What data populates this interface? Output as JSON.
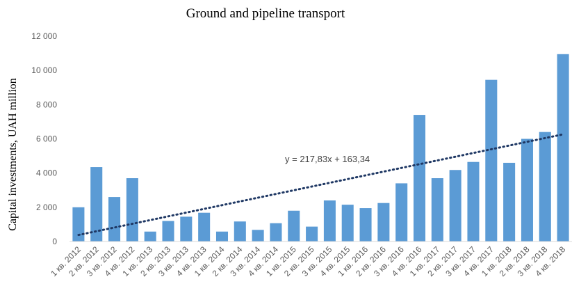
{
  "chart_data": {
    "type": "bar",
    "title": "Ground and pipeline transport",
    "xlabel": "",
    "ylabel": "Capital investments, UAH million",
    "ylim": [
      0,
      12000
    ],
    "yticks": [
      0,
      2000,
      4000,
      6000,
      8000,
      10000,
      12000
    ],
    "ytick_labels": [
      "0",
      "2 000",
      "4 000",
      "6 000",
      "8 000",
      "10 000",
      "12 000"
    ],
    "grid": false,
    "legend": "none",
    "bar_color": "#5B9BD5",
    "trendline_color": "#1F3864",
    "categories": [
      "1 кв. 2012",
      "2 кв. 2012",
      "3 кв. 2012",
      "4 кв. 2012",
      "1 кв. 2013",
      "2 кв. 2013",
      "3 кв. 2013",
      "4 кв. 2013",
      "1 кв. 2014",
      "2 кв. 2014",
      "3 кв. 2014",
      "4 кв. 2014",
      "1 кв. 2015",
      "2 кв. 2015",
      "3 кв. 2015",
      "4 кв. 2015",
      "1 кв. 2016",
      "2 кв. 2016",
      "3 кв. 2016",
      "4 кв. 2016",
      "1 кв. 2017",
      "2 кв. 2017",
      "3 кв. 2017",
      "4 кв. 2017",
      "1 кв. 2018",
      "2 кв. 2018",
      "3 кв. 2018",
      "4 кв. 2018"
    ],
    "values": [
      2000,
      4350,
      2600,
      3700,
      580,
      1200,
      1450,
      1680,
      580,
      1170,
      680,
      1070,
      1800,
      870,
      2400,
      2150,
      1950,
      2250,
      3400,
      7400,
      3700,
      4180,
      4650,
      9450,
      4600,
      6000,
      6400,
      10950
    ],
    "trendline": {
      "type": "linear",
      "slope": 217.83,
      "intercept": 163.34,
      "equation_label": "y = 217,83x  + 163,34"
    }
  }
}
